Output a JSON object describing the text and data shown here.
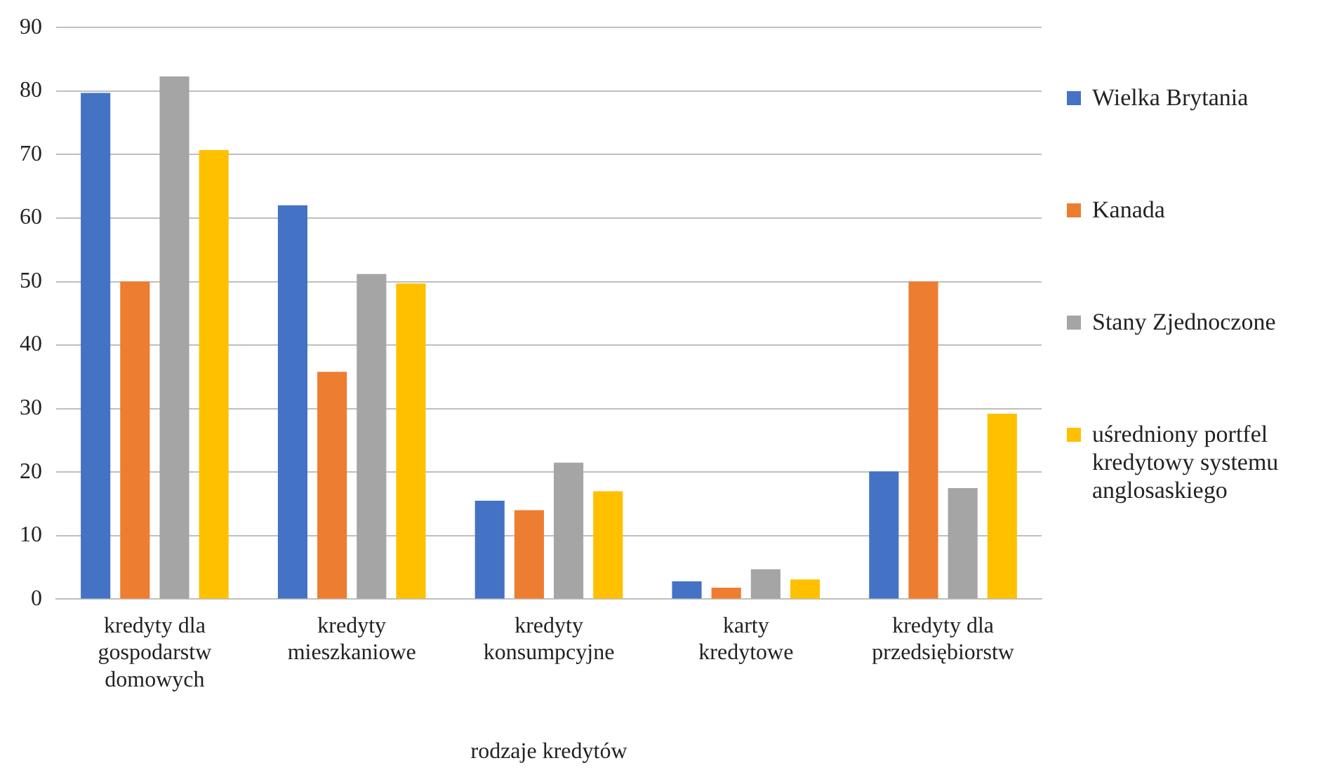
{
  "chart_data": {
    "type": "bar",
    "xlabel": "rodzaje kredytów",
    "categories": [
      "kredyty dla gospodarstw domowych",
      "kredyty mieszkaniowe",
      "kredyty konsumpcyjne",
      "karty kredytowe",
      "kredyty dla przedsiębiorstw"
    ],
    "series": [
      {
        "name": "Wielka Brytania",
        "color": "#4472c4",
        "values": [
          79.7,
          62,
          15.5,
          2.8,
          20.1
        ]
      },
      {
        "name": "Kanada",
        "color": "#ed7d31",
        "values": [
          50,
          35.8,
          14,
          1.8,
          50
        ]
      },
      {
        "name": "Stany Zjednoczone",
        "color": "#a5a5a5",
        "values": [
          82.3,
          51.2,
          21.5,
          4.7,
          17.5
        ]
      },
      {
        "name": "uśredniony portfel kredytowy systemu anglosaskiego",
        "color": "#ffc000",
        "values": [
          70.7,
          49.7,
          17,
          3.1,
          29.2
        ]
      }
    ],
    "ylim": [
      0,
      90
    ],
    "yticks": [
      0,
      10,
      20,
      30,
      40,
      50,
      60,
      70,
      80,
      90
    ],
    "grid": "y",
    "legend": "right"
  }
}
